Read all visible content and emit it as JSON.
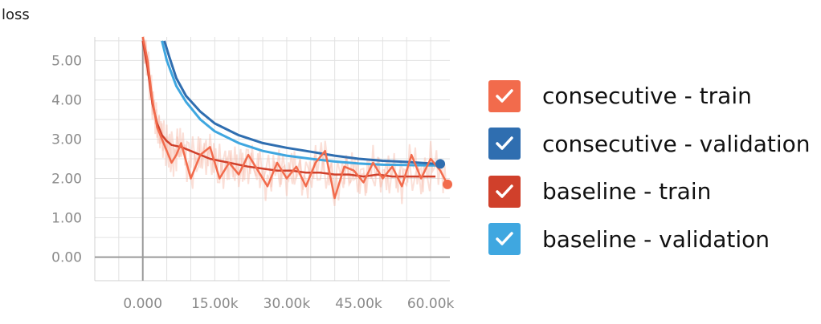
{
  "chart_data": {
    "type": "line",
    "title": "loss",
    "xlabel": "",
    "ylabel": "",
    "xlim": [
      -10000,
      64000
    ],
    "ylim": [
      -0.6,
      5.6
    ],
    "x_ticks": [
      0,
      15000,
      30000,
      45000,
      60000
    ],
    "x_tick_labels": [
      "0.000",
      "15.00k",
      "30.00k",
      "45.00k",
      "60.00k"
    ],
    "y_ticks": [
      0,
      1,
      2,
      3,
      4,
      5
    ],
    "y_tick_labels": [
      "0.00",
      "1.00",
      "2.00",
      "3.00",
      "4.00",
      "5.00"
    ],
    "grid": true,
    "legend_position": "right",
    "series": [
      {
        "name": "consecutive - train",
        "color": "#f26b4c",
        "x": [
          0,
          1000,
          2000,
          3000,
          4000,
          5000,
          6000,
          7000,
          8000,
          10000,
          12000,
          14000,
          16000,
          18000,
          20000,
          22000,
          24000,
          26000,
          28000,
          30000,
          32000,
          34000,
          36000,
          38000,
          40000,
          42000,
          44000,
          46000,
          48000,
          50000,
          52000,
          54000,
          56000,
          58000,
          60000,
          62000,
          63500
        ],
        "values": [
          5.6,
          5.0,
          4.0,
          3.3,
          3.0,
          2.7,
          2.4,
          2.6,
          2.9,
          2.0,
          2.6,
          2.8,
          2.0,
          2.4,
          2.1,
          2.6,
          2.2,
          1.8,
          2.4,
          2.0,
          2.3,
          1.8,
          2.4,
          2.7,
          1.5,
          2.3,
          2.2,
          1.9,
          2.4,
          2.0,
          2.3,
          1.8,
          2.6,
          2.0,
          2.5,
          2.2,
          1.85
        ]
      },
      {
        "name": "consecutive - validation",
        "color": "#2f6eb0",
        "x": [
          4500,
          5500,
          7000,
          9000,
          12000,
          15000,
          20000,
          25000,
          30000,
          35000,
          40000,
          45000,
          50000,
          55000,
          60000,
          62000
        ],
        "values": [
          5.5,
          5.1,
          4.55,
          4.1,
          3.7,
          3.4,
          3.1,
          2.9,
          2.78,
          2.68,
          2.58,
          2.5,
          2.45,
          2.42,
          2.38,
          2.37
        ]
      },
      {
        "name": "baseline - train",
        "color": "#d0402b",
        "x": [
          0,
          1000,
          2000,
          3000,
          4000,
          5000,
          6000,
          8000,
          10000,
          12000,
          14000,
          16000,
          18000,
          20000,
          22000,
          25000,
          28000,
          31000,
          34000,
          37000,
          40000,
          43000,
          46000,
          49000,
          52000,
          55000,
          58000,
          61000
        ],
        "values": [
          5.5,
          4.8,
          3.9,
          3.4,
          3.1,
          2.95,
          2.85,
          2.8,
          2.7,
          2.6,
          2.5,
          2.45,
          2.4,
          2.35,
          2.3,
          2.25,
          2.2,
          2.2,
          2.15,
          2.15,
          2.1,
          2.1,
          2.05,
          2.1,
          2.05,
          2.05,
          2.05,
          2.05
        ]
      },
      {
        "name": "baseline - validation",
        "color": "#3fa7e0",
        "x": [
          4000,
          5000,
          7000,
          9000,
          12000,
          15000,
          20000,
          25000,
          30000,
          35000,
          40000,
          45000,
          50000,
          55000,
          60000,
          62000
        ],
        "values": [
          5.5,
          5.0,
          4.35,
          3.95,
          3.5,
          3.2,
          2.9,
          2.7,
          2.58,
          2.5,
          2.43,
          2.38,
          2.35,
          2.34,
          2.33,
          2.33
        ]
      }
    ],
    "end_markers": [
      {
        "series": "consecutive - validation",
        "x": 62000,
        "y": 2.37
      },
      {
        "series": "consecutive - train",
        "x": 63500,
        "y": 1.85
      }
    ]
  },
  "legend": {
    "items": [
      {
        "label": "consecutive - train",
        "color": "#f26b4c"
      },
      {
        "label": "consecutive - validation",
        "color": "#2f6eb0"
      },
      {
        "label": "baseline - train",
        "color": "#d0402b"
      },
      {
        "label": "baseline - validation",
        "color": "#3fa7e0"
      }
    ]
  }
}
